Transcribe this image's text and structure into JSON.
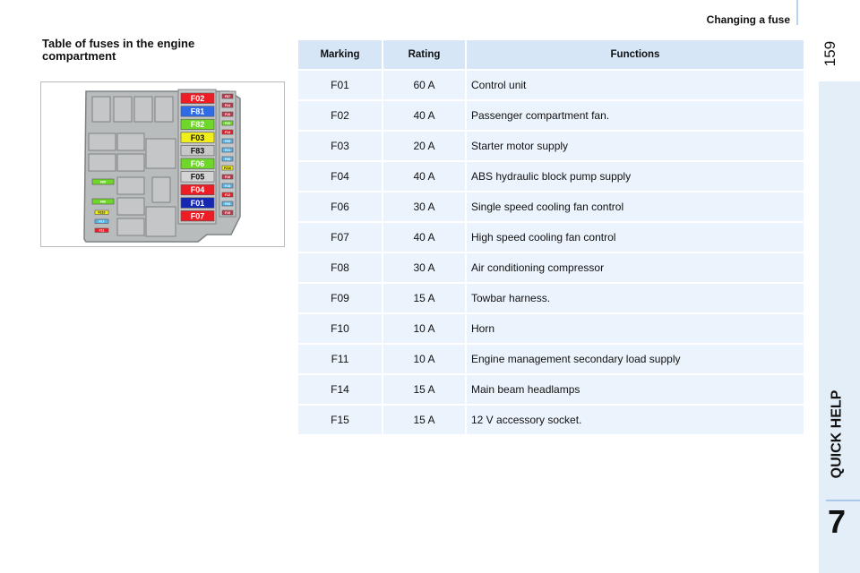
{
  "header": {
    "section": "Changing a fuse",
    "page_number": "159"
  },
  "sidebar": {
    "label": "QUICK HELP",
    "chapter": "7"
  },
  "title": "Table of fuses in the engine compartment",
  "diagram": {
    "main_fuses": [
      {
        "label": "F02",
        "color": "#ee1c24"
      },
      {
        "label": "F81",
        "color": "#2e6be6"
      },
      {
        "label": "F82",
        "color": "#6fd62a"
      },
      {
        "label": "F03",
        "color": "#f2ee1a"
      },
      {
        "label": "F83",
        "color": "#c8c8c8"
      },
      {
        "label": "F06",
        "color": "#6fd62a"
      },
      {
        "label": "F05",
        "color": "#d4d4d4"
      },
      {
        "label": "F04",
        "color": "#ee1c24"
      },
      {
        "label": "F01",
        "color": "#1428b4"
      },
      {
        "label": "F07",
        "color": "#ee1c24"
      }
    ],
    "mini_fuses": [
      {
        "label": "F87",
        "color": "#c0394a"
      },
      {
        "label": "F24",
        "color": "#c0394a"
      },
      {
        "label": "F10",
        "color": "#c0394a"
      },
      {
        "label": "F20",
        "color": "#6fd62a"
      },
      {
        "label": "F14",
        "color": "#ee1c24"
      },
      {
        "label": "F09",
        "color": "#59b3e8"
      },
      {
        "label": "F21",
        "color": "#59b3e8"
      },
      {
        "label": "F30",
        "color": "#59b3e8"
      },
      {
        "label": "F210",
        "color": "#f2ee1a"
      },
      {
        "label": "F16",
        "color": "#c0394a"
      },
      {
        "label": "F18",
        "color": "#59b3e8"
      },
      {
        "label": "F12",
        "color": "#ee1c24"
      },
      {
        "label": "F08",
        "color": "#59b3e8"
      },
      {
        "label": "F19",
        "color": "#c0394a"
      }
    ],
    "left_fuses": [
      {
        "label": "F85",
        "color": "#6fd62a"
      },
      {
        "label": "F86",
        "color": "#6fd62a"
      },
      {
        "label": "F210",
        "color": "#f2ee1a"
      },
      {
        "label": "F17",
        "color": "#59b3e8"
      },
      {
        "label": "F11",
        "color": "#ee1c24"
      }
    ]
  },
  "table": {
    "headers": [
      "Marking",
      "Rating",
      "Functions"
    ],
    "rows": [
      [
        "F01",
        "60 A",
        "Control unit"
      ],
      [
        "F02",
        "40 A",
        "Passenger compartment fan."
      ],
      [
        "F03",
        "20 A",
        "Starter motor supply"
      ],
      [
        "F04",
        "40 A",
        "ABS hydraulic block pump supply"
      ],
      [
        "F06",
        "30 A",
        "Single speed cooling fan control"
      ],
      [
        "F07",
        "40 A",
        "High speed cooling fan control"
      ],
      [
        "F08",
        "30 A",
        "Air conditioning compressor"
      ],
      [
        "F09",
        "15 A",
        "Towbar harness."
      ],
      [
        "F10",
        "10 A",
        "Horn"
      ],
      [
        "F11",
        "10 A",
        "Engine management secondary load supply"
      ],
      [
        "F14",
        "15 A",
        "Main beam headlamps"
      ],
      [
        "F15",
        "15 A",
        "12 V accessory socket."
      ]
    ]
  }
}
